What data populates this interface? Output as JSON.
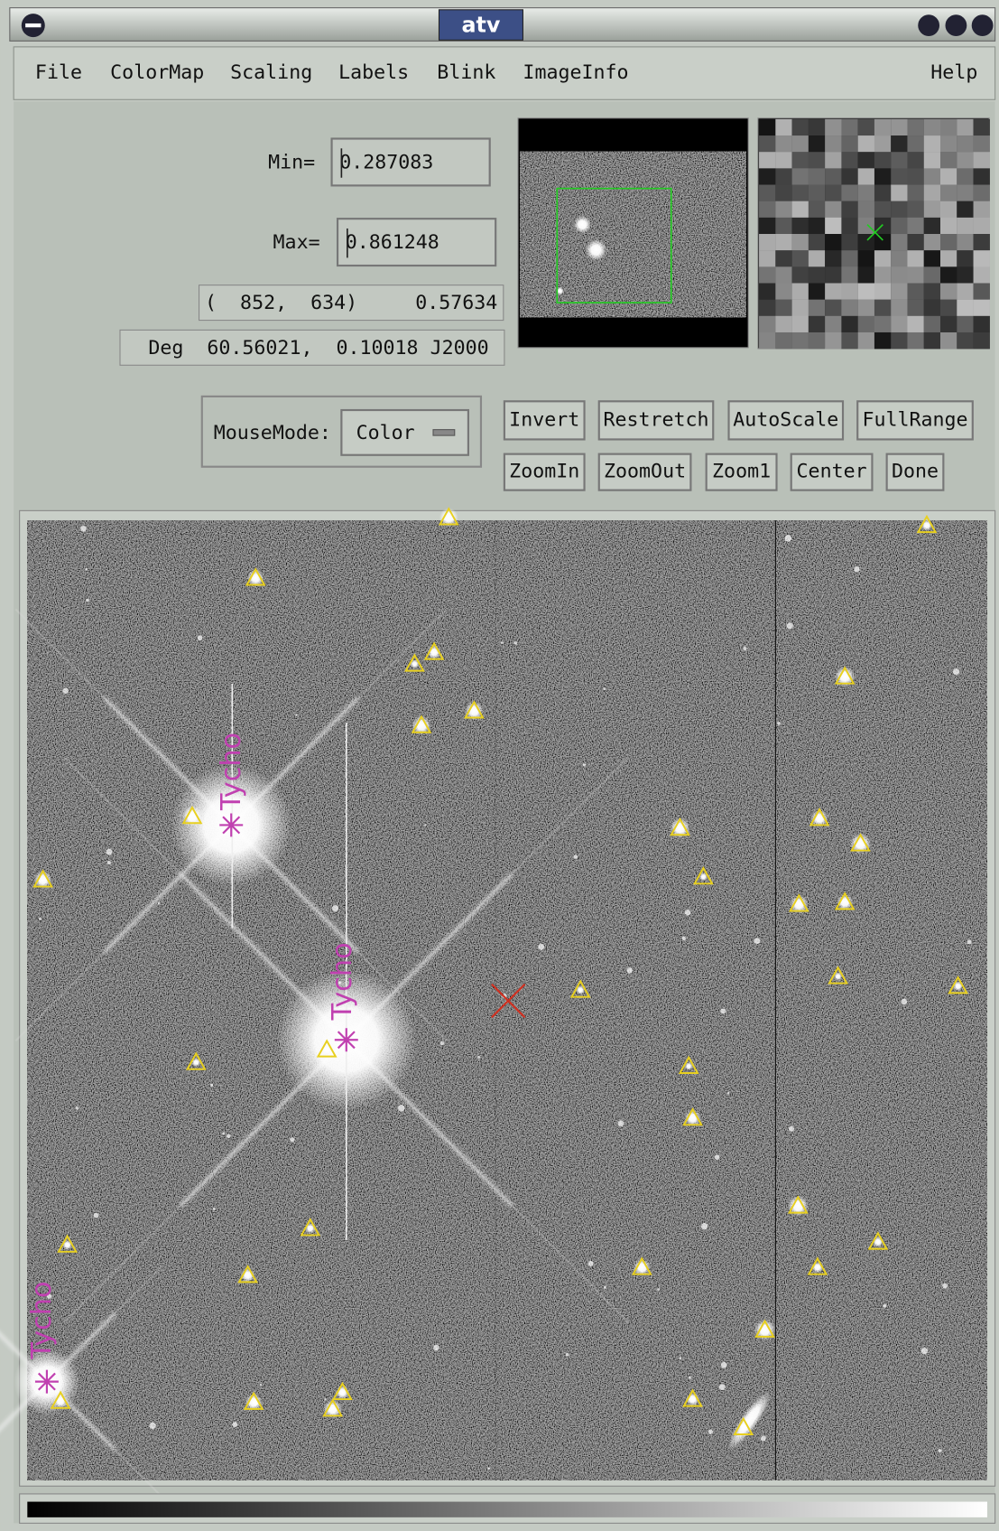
{
  "window": {
    "title": "atv"
  },
  "menu": [
    "File",
    "ColorMap",
    "Scaling",
    "Labels",
    "Blink",
    "ImageInfo",
    "Help"
  ],
  "controls": {
    "min_label": "Min=",
    "min_value": "0.287083",
    "max_label": "Max=",
    "max_value": "0.861248",
    "pixel_coords": "(  852,  634)",
    "pixel_value": "0.57634",
    "world_coords": "Deg  60.56021,  0.10018 J2000",
    "mousemode_label": "MouseMode:",
    "mousemode_value": "Color"
  },
  "buttons": [
    [
      "Invert",
      "Restretch",
      "AutoScale",
      "FullRange"
    ],
    [
      "ZoomIn",
      "ZoomOut",
      "Zoom1",
      "Center",
      "Done"
    ]
  ],
  "annotations": [
    "Tycho",
    "Tycho",
    "Tycho"
  ]
}
